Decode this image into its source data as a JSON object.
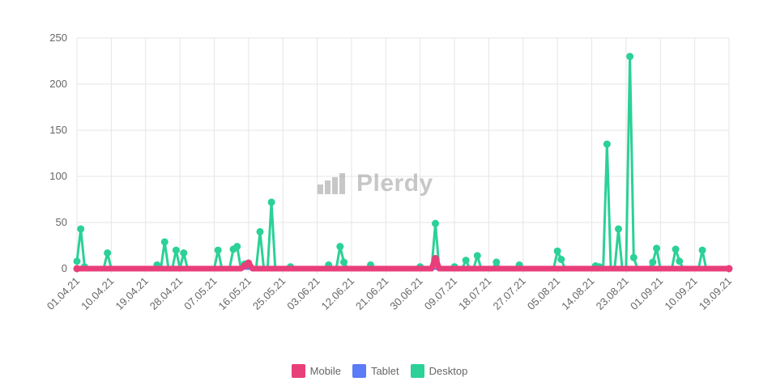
{
  "chart_data": {
    "type": "line",
    "x_labels": [
      "01.04.21",
      "10.04.21",
      "19.04.21",
      "28.04.21",
      "07.05.21",
      "16.05.21",
      "25.05.21",
      "03.06.21",
      "12.06.21",
      "21.06.21",
      "30.06.21",
      "09.07.21",
      "18.07.21",
      "27.07.21",
      "05.08.21",
      "14.08.21",
      "23.08.21",
      "01.09.21",
      "10.09.21",
      "19.09.21"
    ],
    "ylim": [
      0,
      250
    ],
    "yticks": [
      0,
      50,
      100,
      150,
      200,
      250
    ],
    "grid": true,
    "legend_position": "bottom",
    "series": [
      {
        "name": "Mobile",
        "color": "#e83e7a",
        "points": [
          [
            44,
            3
          ],
          [
            45,
            6
          ],
          [
            94,
            11
          ]
        ]
      },
      {
        "name": "Tablet",
        "color": "#5b7cf7",
        "points": []
      },
      {
        "name": "Desktop",
        "color": "#2bd196",
        "points": [
          [
            0,
            8
          ],
          [
            1,
            43
          ],
          [
            2,
            2
          ],
          [
            8,
            17
          ],
          [
            21,
            4
          ],
          [
            23,
            29
          ],
          [
            26,
            20
          ],
          [
            28,
            17
          ],
          [
            37,
            20
          ],
          [
            41,
            21
          ],
          [
            42,
            24
          ],
          [
            44,
            5
          ],
          [
            48,
            40
          ],
          [
            51,
            72
          ],
          [
            56,
            2
          ],
          [
            66,
            4
          ],
          [
            69,
            24
          ],
          [
            70,
            7
          ],
          [
            77,
            4
          ],
          [
            90,
            2
          ],
          [
            94,
            49
          ],
          [
            99,
            2
          ],
          [
            102,
            9
          ],
          [
            105,
            14
          ],
          [
            110,
            7
          ],
          [
            116,
            4
          ],
          [
            126,
            19
          ],
          [
            127,
            10
          ],
          [
            136,
            3
          ],
          [
            137,
            2
          ],
          [
            139,
            135
          ],
          [
            142,
            43
          ],
          [
            145,
            230
          ],
          [
            146,
            12
          ],
          [
            151,
            7
          ],
          [
            152,
            22
          ],
          [
            157,
            21
          ],
          [
            158,
            8
          ],
          [
            164,
            20
          ]
        ]
      }
    ],
    "x_max_index": 171
  },
  "legend": {
    "mobile": "Mobile",
    "tablet": "Tablet",
    "desktop": "Desktop"
  },
  "colors": {
    "mobile": "#e83e7a",
    "tablet": "#5b7cf7",
    "desktop": "#2bd196",
    "grid": "#e5e5e5"
  },
  "watermark": {
    "text": "Plerdy"
  }
}
